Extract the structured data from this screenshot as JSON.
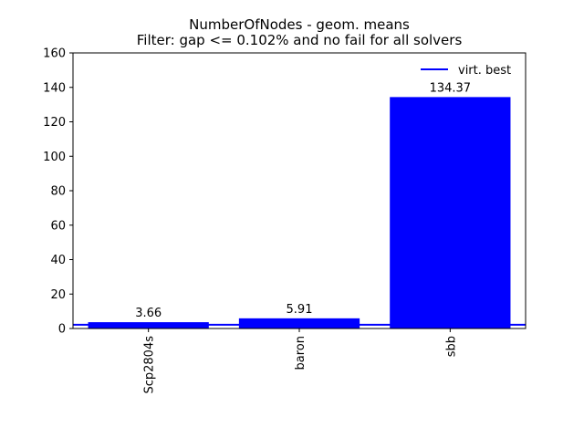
{
  "chart_data": {
    "type": "bar",
    "title": "NumberOfNodes - geom. means",
    "subtitle": "Filter: gap <= 0.102% and no fail for all solvers",
    "xlabel": "",
    "ylabel": "",
    "categories": [
      "Scp2804s",
      "baron",
      "sbb"
    ],
    "values": [
      3.66,
      5.91,
      134.37
    ],
    "value_labels": [
      "3.66",
      "5.91",
      "134.37"
    ],
    "ylim": [
      0,
      160
    ],
    "yticks": [
      0,
      20,
      40,
      60,
      80,
      100,
      120,
      140,
      160
    ],
    "bar_color": "#0000ff",
    "reference_line": {
      "name": "virt. best",
      "value": 2.2,
      "color": "#0000ff"
    },
    "legend": {
      "position": "top-right",
      "entries": [
        "virt. best"
      ]
    },
    "grid": false
  }
}
